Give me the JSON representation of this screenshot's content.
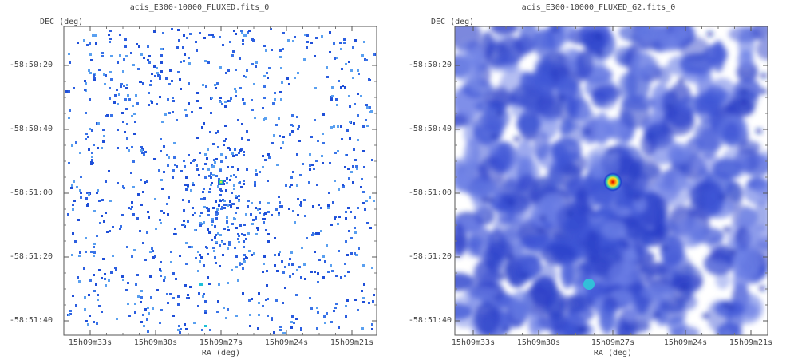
{
  "panels": [
    {
      "title": "acis_E300-10000_FLUXED.fits_0",
      "y_axis_label": "DEC (deg)",
      "x_axis_label": "RA (deg)",
      "y_ticks": [
        "-58:50:20",
        "-58:50:40",
        "-58:51:00",
        "-58:51:20",
        "-58:51:40"
      ],
      "x_ticks": [
        "15h09m33s",
        "15h09m30s",
        "15h09m27s",
        "15h09m24s",
        "15h09m21s"
      ],
      "style": "pixelated",
      "colors": [
        "#1f4fd8",
        "#3a74e8",
        "#2c5fe0",
        "#5aa0f0"
      ]
    },
    {
      "title": "acis_E300-10000_FLUXED_G2.fits_0",
      "y_axis_label": "DEC (deg)",
      "x_axis_label": "RA (deg)",
      "y_ticks": [
        "-58:50:20",
        "-58:50:40",
        "-58:51:00",
        "-58:51:20",
        "-58:51:40"
      ],
      "x_ticks": [
        "15h09m33s",
        "15h09m30s",
        "15h09m27s",
        "15h09m24s",
        "15h09m21s"
      ],
      "style": "smoothed",
      "colors": [
        "#6f82e6",
        "#3f56d6",
        "#2a3fc8"
      ]
    }
  ]
}
